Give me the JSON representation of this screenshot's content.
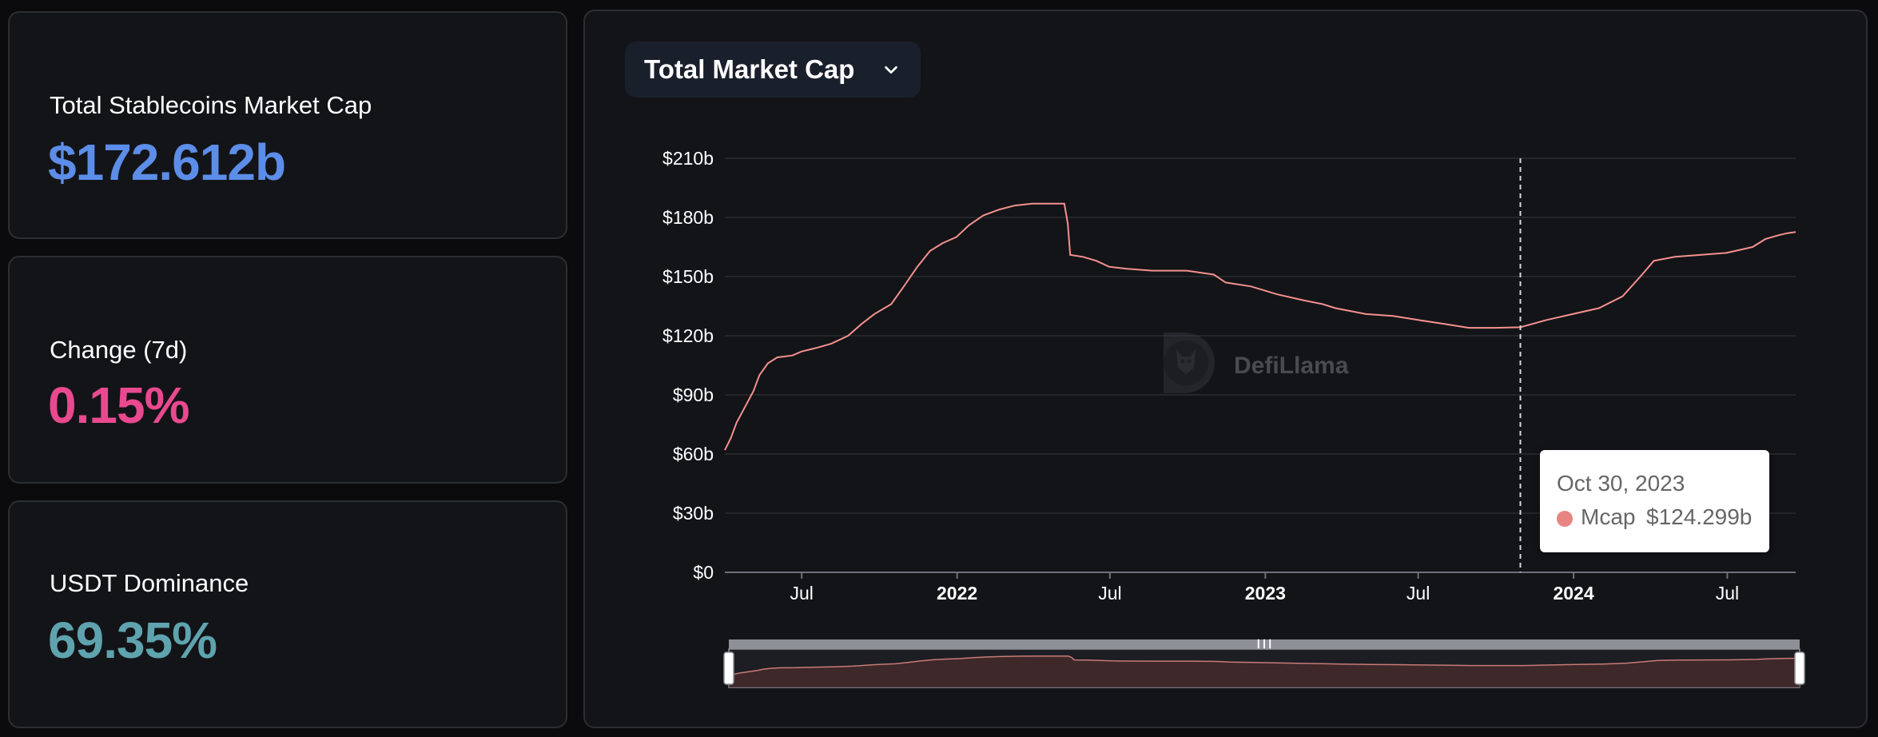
{
  "stats": [
    {
      "label": "Total Stablecoins Market Cap",
      "value": "$172.612b",
      "color": "#5c8de8"
    },
    {
      "label": "Change (7d)",
      "value": "0.15%",
      "color": "#e9498f"
    },
    {
      "label": "USDT Dominance",
      "value": "69.35%",
      "color": "#5fa3ae"
    }
  ],
  "chart_selector": {
    "label": "Total Market Cap",
    "icon": "chevron-down-icon"
  },
  "watermark": {
    "text": "DefiLlama",
    "icon": "defillama-logo-icon"
  },
  "line_color": "#f4918f",
  "tooltip": {
    "date": "Oct 30, 2023",
    "series": "Mcap",
    "value": "$124.299b",
    "dot_color": "#e78582"
  },
  "chart_data": {
    "type": "line",
    "title": "",
    "xlabel": "",
    "ylabel": "",
    "ylim": [
      0,
      210
    ],
    "y_unit": "b USD",
    "y_ticks": [
      0,
      30,
      60,
      90,
      120,
      150,
      180,
      210
    ],
    "y_tick_labels": [
      "$0",
      "$30b",
      "$60b",
      "$90b",
      "$120b",
      "$150b",
      "$180b",
      "$210b"
    ],
    "xlim": [
      "2021-04-01",
      "2024-09-20"
    ],
    "x_ticks": [
      {
        "date": "2021-07-01",
        "label": "Jul",
        "bold": false
      },
      {
        "date": "2022-01-01",
        "label": "2022",
        "bold": true
      },
      {
        "date": "2022-07-01",
        "label": "Jul",
        "bold": false
      },
      {
        "date": "2023-01-01",
        "label": "2023",
        "bold": true
      },
      {
        "date": "2023-07-01",
        "label": "Jul",
        "bold": false
      },
      {
        "date": "2024-01-01",
        "label": "2024",
        "bold": true
      },
      {
        "date": "2024-07-01",
        "label": "Jul",
        "bold": false
      }
    ],
    "grid": true,
    "legend": "none",
    "crosshair_date": "2023-10-30",
    "series": [
      {
        "name": "Mcap",
        "points": [
          [
            "2021-04-01",
            62
          ],
          [
            "2021-04-08",
            68
          ],
          [
            "2021-04-15",
            76
          ],
          [
            "2021-04-25",
            84
          ],
          [
            "2021-05-05",
            92
          ],
          [
            "2021-05-12",
            100
          ],
          [
            "2021-05-22",
            106
          ],
          [
            "2021-06-02",
            109
          ],
          [
            "2021-06-20",
            110
          ],
          [
            "2021-07-01",
            112
          ],
          [
            "2021-07-20",
            114
          ],
          [
            "2021-08-05",
            116
          ],
          [
            "2021-08-25",
            120
          ],
          [
            "2021-09-10",
            126
          ],
          [
            "2021-09-25",
            131
          ],
          [
            "2021-10-15",
            136
          ],
          [
            "2021-10-30",
            145
          ],
          [
            "2021-11-15",
            155
          ],
          [
            "2021-11-30",
            163
          ],
          [
            "2021-12-15",
            167
          ],
          [
            "2021-12-31",
            170
          ],
          [
            "2022-01-15",
            176
          ],
          [
            "2022-02-01",
            181
          ],
          [
            "2022-02-20",
            184
          ],
          [
            "2022-03-10",
            186
          ],
          [
            "2022-03-31",
            187
          ],
          [
            "2022-04-20",
            187
          ],
          [
            "2022-05-08",
            187
          ],
          [
            "2022-05-12",
            177
          ],
          [
            "2022-05-15",
            161
          ],
          [
            "2022-05-30",
            160
          ],
          [
            "2022-06-15",
            158
          ],
          [
            "2022-06-30",
            155
          ],
          [
            "2022-07-20",
            154
          ],
          [
            "2022-08-20",
            153
          ],
          [
            "2022-09-30",
            153
          ],
          [
            "2022-11-01",
            151
          ],
          [
            "2022-11-15",
            147
          ],
          [
            "2022-12-15",
            145
          ],
          [
            "2023-01-15",
            141
          ],
          [
            "2023-02-15",
            138
          ],
          [
            "2023-03-10",
            136
          ],
          [
            "2023-03-25",
            134
          ],
          [
            "2023-04-30",
            131
          ],
          [
            "2023-06-01",
            130
          ],
          [
            "2023-07-01",
            128
          ],
          [
            "2023-08-01",
            126
          ],
          [
            "2023-08-30",
            124
          ],
          [
            "2023-09-30",
            124
          ],
          [
            "2023-10-30",
            124.3
          ],
          [
            "2023-11-30",
            128
          ],
          [
            "2023-12-31",
            131
          ],
          [
            "2024-01-31",
            134
          ],
          [
            "2024-02-28",
            140
          ],
          [
            "2024-03-20",
            150
          ],
          [
            "2024-04-05",
            158
          ],
          [
            "2024-04-30",
            160
          ],
          [
            "2024-05-30",
            161
          ],
          [
            "2024-06-30",
            162
          ],
          [
            "2024-07-31",
            165
          ],
          [
            "2024-08-15",
            169
          ],
          [
            "2024-08-31",
            171
          ],
          [
            "2024-09-10",
            172
          ],
          [
            "2024-09-20",
            172.6
          ]
        ]
      }
    ]
  }
}
